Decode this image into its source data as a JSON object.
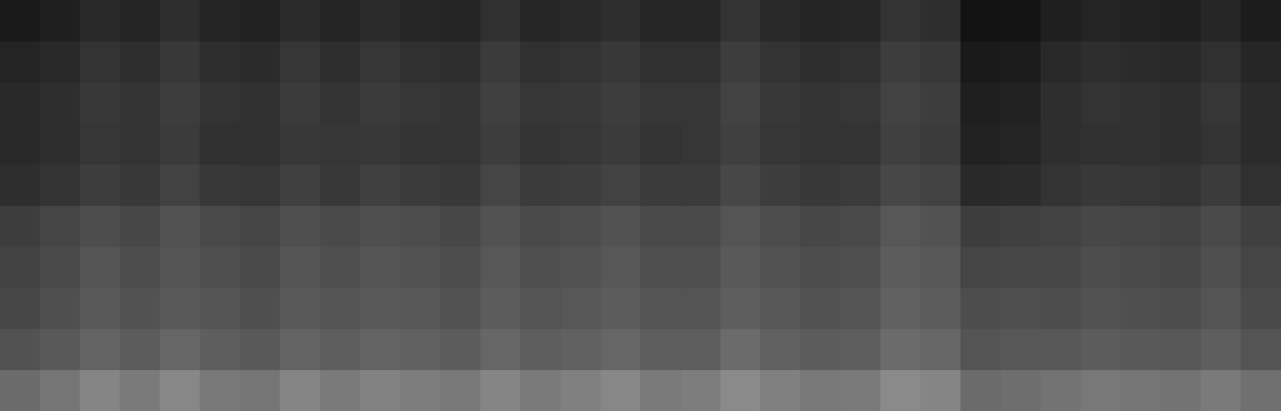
{
  "chart_data": {
    "type": "heatmap",
    "tick_labels": false,
    "zlim": [
      0,
      100
    ],
    "cells": [
      [
        10,
        12,
        16,
        14,
        18,
        14,
        13,
        17,
        14,
        17,
        15,
        14,
        19,
        15,
        16,
        18,
        15,
        15,
        20,
        16,
        14,
        15,
        20,
        18,
        7,
        8,
        12,
        14,
        13,
        12,
        15,
        11
      ],
      [
        14,
        16,
        20,
        18,
        22,
        18,
        17,
        21,
        18,
        21,
        19,
        18,
        23,
        19,
        20,
        22,
        19,
        19,
        24,
        20,
        18,
        19,
        24,
        22,
        10,
        11,
        16,
        18,
        17,
        16,
        19,
        15
      ],
      [
        16,
        18,
        22,
        20,
        24,
        20,
        19,
        23,
        20,
        23,
        21,
        20,
        25,
        21,
        22,
        24,
        21,
        21,
        26,
        22,
        20,
        21,
        26,
        24,
        12,
        13,
        18,
        20,
        19,
        18,
        21,
        17
      ],
      [
        16,
        18,
        21,
        20,
        23,
        19,
        19,
        22,
        21,
        22,
        20,
        20,
        24,
        20,
        21,
        23,
        20,
        21,
        25,
        21,
        20,
        20,
        25,
        23,
        13,
        14,
        18,
        19,
        19,
        18,
        20,
        17
      ],
      [
        18,
        20,
        24,
        22,
        26,
        22,
        21,
        25,
        22,
        25,
        23,
        22,
        27,
        23,
        24,
        26,
        23,
        23,
        28,
        24,
        22,
        23,
        28,
        26,
        16,
        17,
        20,
        22,
        21,
        20,
        23,
        19
      ],
      [
        24,
        27,
        30,
        28,
        32,
        29,
        27,
        31,
        29,
        31,
        30,
        28,
        32,
        29,
        30,
        32,
        29,
        29,
        33,
        30,
        28,
        29,
        34,
        32,
        24,
        25,
        26,
        28,
        27,
        26,
        29,
        25
      ],
      [
        26,
        29,
        33,
        30,
        33,
        31,
        29,
        33,
        31,
        33,
        32,
        30,
        34,
        31,
        32,
        34,
        31,
        31,
        35,
        32,
        30,
        31,
        36,
        34,
        27,
        28,
        28,
        30,
        29,
        28,
        31,
        27
      ],
      [
        28,
        31,
        35,
        32,
        35,
        33,
        31,
        35,
        33,
        35,
        34,
        32,
        36,
        33,
        34,
        36,
        33,
        33,
        37,
        34,
        32,
        33,
        38,
        36,
        30,
        31,
        30,
        32,
        31,
        30,
        33,
        29
      ],
      [
        32,
        35,
        39,
        36,
        40,
        37,
        35,
        39,
        37,
        39,
        38,
        36,
        40,
        37,
        38,
        40,
        37,
        37,
        42,
        38,
        36,
        37,
        42,
        40,
        33,
        34,
        34,
        36,
        35,
        34,
        37,
        33
      ],
      [
        42,
        46,
        52,
        48,
        53,
        47,
        46,
        52,
        48,
        51,
        49,
        47,
        52,
        48,
        50,
        53,
        48,
        49,
        54,
        50,
        47,
        48,
        54,
        52,
        42,
        43,
        45,
        47,
        46,
        45,
        48,
        44
      ]
    ]
  }
}
